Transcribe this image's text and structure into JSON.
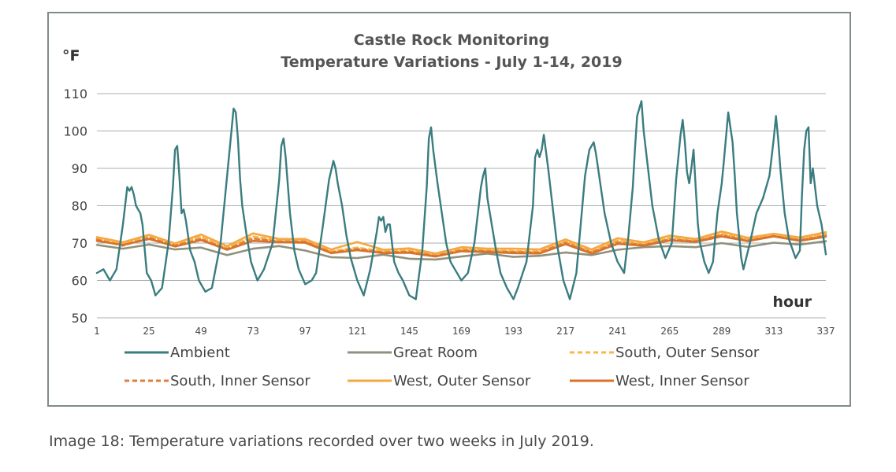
{
  "caption": "Image 18: Temperature variations recorded over two weeks in July 2019.",
  "chart_data": {
    "type": "line",
    "title": "Castle Rock Monitoring",
    "subtitle": "Temperature Variations - July 1-14, 2019",
    "ylabel": "°F",
    "xlabel": "hour",
    "xlim": [
      1,
      337
    ],
    "ylim": [
      50,
      110
    ],
    "yticks": [
      50,
      60,
      70,
      80,
      90,
      100,
      110
    ],
    "xticks": [
      1,
      25,
      49,
      73,
      97,
      121,
      145,
      169,
      193,
      217,
      241,
      265,
      289,
      313,
      337
    ],
    "grid": true,
    "legend_position": "bottom",
    "series": [
      {
        "name": "Ambient",
        "color": "#3a7c80",
        "dash": "solid",
        "x": [
          1,
          4,
          7,
          10,
          13,
          15,
          16,
          17,
          18,
          19,
          20,
          21,
          22,
          24,
          26,
          28,
          31,
          34,
          36,
          37,
          38,
          39,
          40,
          41,
          42,
          44,
          46,
          48,
          51,
          54,
          58,
          61,
          63,
          64,
          65,
          66,
          67,
          68,
          70,
          72,
          75,
          78,
          82,
          85,
          86,
          87,
          88,
          90,
          92,
          94,
          97,
          100,
          102,
          105,
          108,
          110,
          111,
          112,
          114,
          116,
          118,
          121,
          124,
          127,
          130,
          131,
          132,
          133,
          134,
          135,
          136,
          138,
          140,
          142,
          145,
          148,
          151,
          153,
          154,
          155,
          156,
          158,
          160,
          162,
          164,
          166,
          169,
          172,
          175,
          178,
          179,
          180,
          181,
          183,
          185,
          187,
          190,
          193,
          195,
          199,
          202,
          203,
          204,
          205,
          206,
          207,
          209,
          211,
          213,
          216,
          219,
          222,
          224,
          226,
          228,
          229,
          230,
          231,
          233,
          235,
          238,
          241,
          244,
          246,
          248,
          249,
          250,
          251,
          252,
          253,
          255,
          257,
          260,
          263,
          266,
          268,
          270,
          271,
          272,
          273,
          274,
          275,
          276,
          277,
          278,
          279,
          281,
          283,
          285,
          287,
          289,
          290,
          292,
          294,
          295,
          296,
          297,
          298,
          299,
          302,
          305,
          308,
          311,
          313,
          314,
          315,
          316,
          318,
          320,
          323,
          325,
          326,
          327,
          328,
          329,
          330,
          331,
          333,
          335,
          337
        ],
        "values": [
          62,
          63,
          60,
          63,
          75,
          85,
          84,
          85,
          83,
          80,
          79,
          78,
          75,
          62,
          60,
          56,
          58,
          70,
          85,
          95,
          96,
          88,
          78,
          79,
          76,
          68,
          65,
          60,
          57,
          58,
          70,
          88,
          100,
          106,
          105,
          98,
          87,
          80,
          72,
          65,
          60,
          63,
          70,
          87,
          96,
          98,
          93,
          78,
          68,
          63,
          59,
          60,
          62,
          74,
          87,
          92,
          90,
          86,
          80,
          72,
          66,
          60,
          56,
          63,
          73,
          77,
          76,
          77,
          73,
          75,
          75,
          65,
          62,
          60,
          56,
          55,
          68,
          85,
          98,
          101,
          95,
          86,
          78,
          70,
          65,
          63,
          60,
          62,
          70,
          85,
          88,
          90,
          82,
          75,
          68,
          62,
          58,
          55,
          58,
          65,
          80,
          93,
          95,
          93,
          95,
          99,
          90,
          80,
          70,
          60,
          55,
          62,
          75,
          88,
          95,
          96,
          97,
          94,
          86,
          78,
          70,
          65,
          62,
          72,
          85,
          95,
          104,
          106,
          108,
          100,
          90,
          80,
          71,
          66,
          70,
          87,
          99,
          103,
          97,
          89,
          86,
          90,
          95,
          85,
          75,
          70,
          65,
          62,
          65,
          78,
          86,
          92,
          105,
          97,
          88,
          78,
          72,
          66,
          63,
          70,
          78,
          82,
          88,
          98,
          104,
          98,
          90,
          78,
          71,
          66,
          68,
          83,
          95,
          100,
          101,
          86,
          90,
          80,
          75,
          67
        ]
      },
      {
        "name": "Great Room",
        "color": "#8e927c",
        "dash": "solid",
        "x": [
          1,
          13,
          25,
          37,
          49,
          61,
          73,
          85,
          97,
          109,
          121,
          133,
          145,
          157,
          169,
          181,
          193,
          205,
          217,
          229,
          241,
          253,
          265,
          277,
          289,
          301,
          313,
          325,
          337
        ],
        "values": [
          69.5,
          68.5,
          69.6,
          68.3,
          68.8,
          66.8,
          68.5,
          69.2,
          68,
          66.2,
          66,
          66.9,
          65.8,
          65.6,
          66.4,
          67.2,
          66.3,
          66.6,
          67.5,
          66.8,
          68.2,
          68.9,
          69.2,
          68.9,
          70,
          69,
          70.1,
          69.6,
          70.5
        ]
      },
      {
        "name": "South, Outer Sensor",
        "color": "#f7b84a",
        "dash": "6,4",
        "x": [
          1,
          13,
          25,
          37,
          49,
          61,
          73,
          85,
          97,
          109,
          121,
          133,
          145,
          157,
          169,
          181,
          193,
          205,
          217,
          229,
          241,
          253,
          265,
          277,
          289,
          301,
          313,
          325,
          337
        ],
        "values": [
          71.2,
          69.8,
          71.8,
          69.5,
          71.7,
          68.7,
          71.8,
          70.7,
          70.6,
          67.8,
          68.8,
          67.8,
          68.1,
          66.8,
          68.5,
          68.1,
          67.9,
          67.8,
          70.6,
          67.8,
          70.7,
          69.8,
          71.4,
          70.8,
          72.5,
          71,
          72.1,
          71.1,
          72.4
        ]
      },
      {
        "name": "South, Inner Sensor",
        "color": "#e0803a",
        "dash": "6,4",
        "x": [
          1,
          13,
          25,
          37,
          49,
          61,
          73,
          85,
          97,
          109,
          121,
          133,
          145,
          157,
          169,
          181,
          193,
          205,
          217,
          229,
          241,
          253,
          265,
          277,
          289,
          301,
          313,
          325,
          337
        ],
        "values": [
          70.9,
          69.3,
          71.4,
          69.3,
          71.1,
          68.4,
          71.2,
          70.4,
          70.4,
          67.5,
          68.4,
          67.5,
          67.7,
          66.6,
          68.1,
          67.8,
          67.6,
          67.5,
          70.1,
          67.5,
          70.2,
          69.5,
          71,
          70.5,
          72.1,
          70.7,
          71.9,
          70.8,
          72
        ]
      },
      {
        "name": "West, Outer Sensor",
        "color": "#f5a742",
        "dash": "solid",
        "x": [
          1,
          13,
          25,
          37,
          49,
          61,
          73,
          85,
          97,
          109,
          121,
          133,
          145,
          157,
          169,
          181,
          193,
          205,
          217,
          229,
          241,
          253,
          265,
          277,
          289,
          301,
          313,
          325,
          337
        ],
        "values": [
          71.6,
          70.2,
          72.2,
          69.9,
          72.3,
          69.2,
          72.6,
          71.1,
          71.1,
          68.3,
          70.3,
          68.2,
          68.6,
          67.2,
          68.9,
          68.5,
          68.5,
          68.3,
          71,
          68.3,
          71.3,
          70.2,
          72,
          71.1,
          73.1,
          71.4,
          72.5,
          71.5,
          72.9
        ]
      },
      {
        "name": "West, Inner Sensor",
        "color": "#d9722b",
        "dash": "solid",
        "x": [
          1,
          13,
          25,
          37,
          49,
          61,
          73,
          85,
          97,
          109,
          121,
          133,
          145,
          157,
          169,
          181,
          193,
          205,
          217,
          229,
          241,
          253,
          265,
          277,
          289,
          301,
          313,
          325,
          337
        ],
        "values": [
          70.6,
          69.5,
          71.1,
          69.1,
          70.8,
          68.2,
          70.6,
          70.2,
          70.1,
          67.3,
          68.1,
          67.3,
          67.4,
          66.4,
          67.8,
          67.6,
          67.3,
          67.2,
          69.7,
          67.2,
          69.8,
          69.3,
          70.7,
          70.3,
          71.8,
          70.5,
          71.8,
          70.6,
          71.7
        ]
      }
    ]
  }
}
